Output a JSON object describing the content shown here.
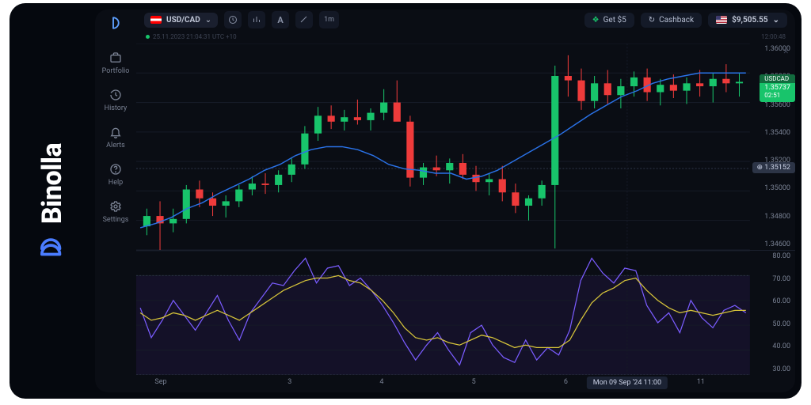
{
  "brand": {
    "name": "Binolla"
  },
  "sidebar": {
    "items": [
      {
        "icon": "portfolio",
        "label": "Portfolio"
      },
      {
        "icon": "history",
        "label": "History"
      },
      {
        "icon": "alerts",
        "label": "Alerts"
      },
      {
        "icon": "help",
        "label": "Help"
      },
      {
        "icon": "settings",
        "label": "Settings"
      }
    ]
  },
  "topbar": {
    "pair": "USD/CAD",
    "interval": "1m",
    "buttons": {
      "get5": "Get $5",
      "cashback": "Cashback"
    },
    "balance": "$9,505.55"
  },
  "info": {
    "ts": "25.11.2023  21:04:31  UTC +10",
    "session": "12:00:48"
  },
  "price_chart": {
    "type": "candlestick",
    "ylim": [
      1.346,
      1.36
    ],
    "yticks": [
      1.346,
      1.348,
      1.35,
      1.352,
      1.354,
      1.356,
      1.358,
      1.36
    ],
    "grid_color": "#161b27",
    "crosshair_y": 1.35152,
    "crosshair_x": 0.8,
    "live_tag": {
      "symbol": "USDCAD",
      "price": "1.35737",
      "timer": "02:51"
    },
    "colors": {
      "up": "#18c46b",
      "down": "#ef3b3b",
      "wick": "#6b7180",
      "ma": "#2a72e8"
    },
    "ma": [
      1.3475,
      1.3478,
      1.3482,
      1.3488,
      1.3492,
      1.3498,
      1.3503,
      1.3508,
      1.3514,
      1.3518,
      1.3524,
      1.3528,
      1.353,
      1.353,
      1.3528,
      1.3524,
      1.3518,
      1.3515,
      1.3514,
      1.3512,
      1.3512,
      1.3508,
      1.351,
      1.3514,
      1.352,
      1.3526,
      1.3532,
      1.3538,
      1.3545,
      1.3552,
      1.3558,
      1.3564,
      1.3568,
      1.3573,
      1.3576,
      1.3578,
      1.358,
      1.358,
      1.358,
      1.358
    ],
    "candles": [
      {
        "o": 1.3476,
        "h": 1.3488,
        "l": 1.347,
        "c": 1.3483
      },
      {
        "o": 1.3483,
        "h": 1.3493,
        "l": 1.3451,
        "c": 1.3478
      },
      {
        "o": 1.3478,
        "h": 1.3488,
        "l": 1.3472,
        "c": 1.3481
      },
      {
        "o": 1.3481,
        "h": 1.3504,
        "l": 1.3478,
        "c": 1.3501
      },
      {
        "o": 1.3501,
        "h": 1.3507,
        "l": 1.3489,
        "c": 1.3495
      },
      {
        "o": 1.3495,
        "h": 1.3499,
        "l": 1.3483,
        "c": 1.349
      },
      {
        "o": 1.349,
        "h": 1.3497,
        "l": 1.3482,
        "c": 1.3493
      },
      {
        "o": 1.3493,
        "h": 1.3504,
        "l": 1.3489,
        "c": 1.3501
      },
      {
        "o": 1.3501,
        "h": 1.351,
        "l": 1.3497,
        "c": 1.3505
      },
      {
        "o": 1.3505,
        "h": 1.3512,
        "l": 1.3498,
        "c": 1.3504
      },
      {
        "o": 1.3504,
        "h": 1.3514,
        "l": 1.3499,
        "c": 1.3511
      },
      {
        "o": 1.3511,
        "h": 1.3522,
        "l": 1.3506,
        "c": 1.3518
      },
      {
        "o": 1.3518,
        "h": 1.3544,
        "l": 1.3515,
        "c": 1.3539
      },
      {
        "o": 1.3539,
        "h": 1.3557,
        "l": 1.3534,
        "c": 1.3551
      },
      {
        "o": 1.3551,
        "h": 1.3558,
        "l": 1.3542,
        "c": 1.3547
      },
      {
        "o": 1.3547,
        "h": 1.3555,
        "l": 1.3541,
        "c": 1.355
      },
      {
        "o": 1.355,
        "h": 1.3562,
        "l": 1.3545,
        "c": 1.3548
      },
      {
        "o": 1.3548,
        "h": 1.3556,
        "l": 1.3541,
        "c": 1.3553
      },
      {
        "o": 1.3553,
        "h": 1.3569,
        "l": 1.3548,
        "c": 1.356
      },
      {
        "o": 1.356,
        "h": 1.3575,
        "l": 1.3552,
        "c": 1.3547
      },
      {
        "o": 1.3547,
        "h": 1.3551,
        "l": 1.3503,
        "c": 1.3509
      },
      {
        "o": 1.3509,
        "h": 1.3519,
        "l": 1.3504,
        "c": 1.3516
      },
      {
        "o": 1.3516,
        "h": 1.3524,
        "l": 1.351,
        "c": 1.3514
      },
      {
        "o": 1.3514,
        "h": 1.3522,
        "l": 1.3505,
        "c": 1.3519
      },
      {
        "o": 1.3519,
        "h": 1.3525,
        "l": 1.3508,
        "c": 1.3511
      },
      {
        "o": 1.3511,
        "h": 1.3517,
        "l": 1.35,
        "c": 1.3506
      },
      {
        "o": 1.3506,
        "h": 1.3512,
        "l": 1.3497,
        "c": 1.3508
      },
      {
        "o": 1.3508,
        "h": 1.3517,
        "l": 1.3493,
        "c": 1.3499
      },
      {
        "o": 1.3499,
        "h": 1.3505,
        "l": 1.3485,
        "c": 1.349
      },
      {
        "o": 1.349,
        "h": 1.3497,
        "l": 1.348,
        "c": 1.3495
      },
      {
        "o": 1.3495,
        "h": 1.3507,
        "l": 1.349,
        "c": 1.3504
      },
      {
        "o": 1.3504,
        "h": 1.3585,
        "l": 1.3461,
        "c": 1.3578
      },
      {
        "o": 1.3578,
        "h": 1.3592,
        "l": 1.3564,
        "c": 1.3575
      },
      {
        "o": 1.3575,
        "h": 1.3583,
        "l": 1.3555,
        "c": 1.3561
      },
      {
        "o": 1.3561,
        "h": 1.3578,
        "l": 1.3556,
        "c": 1.3573
      },
      {
        "o": 1.3573,
        "h": 1.3582,
        "l": 1.3559,
        "c": 1.3565
      },
      {
        "o": 1.3565,
        "h": 1.3576,
        "l": 1.3556,
        "c": 1.3571
      },
      {
        "o": 1.3571,
        "h": 1.3581,
        "l": 1.3564,
        "c": 1.3577
      },
      {
        "o": 1.3577,
        "h": 1.3583,
        "l": 1.3561,
        "c": 1.3567
      },
      {
        "o": 1.3567,
        "h": 1.3576,
        "l": 1.3558,
        "c": 1.3572
      },
      {
        "o": 1.3572,
        "h": 1.3579,
        "l": 1.3563,
        "c": 1.3568
      },
      {
        "o": 1.3568,
        "h": 1.3577,
        "l": 1.3559,
        "c": 1.3573
      },
      {
        "o": 1.3573,
        "h": 1.3582,
        "l": 1.3564,
        "c": 1.3571
      },
      {
        "o": 1.3571,
        "h": 1.358,
        "l": 1.356,
        "c": 1.3576
      },
      {
        "o": 1.3576,
        "h": 1.3586,
        "l": 1.3567,
        "c": 1.3573
      },
      {
        "o": 1.3573,
        "h": 1.358,
        "l": 1.3564,
        "c": 1.3574
      }
    ]
  },
  "osc": {
    "type": "stochastic",
    "ylim": [
      30,
      80
    ],
    "yticks": [
      30,
      40,
      50,
      60,
      70,
      80
    ],
    "band": [
      30,
      70
    ],
    "colors": {
      "k": "#7a5cff",
      "d": "#d7c53a",
      "band": "#1e1638"
    },
    "k": [
      57,
      45,
      52,
      60,
      54,
      48,
      55,
      62,
      52,
      44,
      55,
      61,
      67,
      66,
      72,
      77,
      67,
      73,
      74,
      66,
      69,
      64,
      58,
      51,
      43,
      36,
      42,
      47,
      40,
      34,
      47,
      50,
      42,
      37,
      35,
      44,
      36,
      41,
      38,
      48,
      68,
      77,
      71,
      67,
      73,
      72,
      58,
      51,
      55,
      47,
      60,
      53,
      49,
      56,
      58,
      55
    ],
    "d": [
      55,
      52,
      53,
      55,
      54,
      52,
      54,
      56,
      54,
      52,
      55,
      58,
      61,
      64,
      66,
      68,
      69,
      69,
      70,
      68,
      67,
      64,
      60,
      55,
      49,
      45,
      44,
      45,
      43,
      42,
      44,
      46,
      45,
      43,
      41,
      42,
      41,
      41,
      41,
      44,
      52,
      59,
      63,
      65,
      68,
      69,
      64,
      60,
      57,
      55,
      56,
      55,
      54,
      55,
      56,
      56
    ]
  },
  "xaxis": {
    "ticks": [
      {
        "x": 0.04,
        "label": "Sep"
      },
      {
        "x": 0.25,
        "label": "3"
      },
      {
        "x": 0.4,
        "label": "4"
      },
      {
        "x": 0.55,
        "label": "5"
      },
      {
        "x": 0.7,
        "label": "6"
      },
      {
        "x": 0.92,
        "label": "11"
      }
    ],
    "tooltip": {
      "x": 0.8,
      "text": "Mon 09 Sep '24   11:00"
    }
  }
}
